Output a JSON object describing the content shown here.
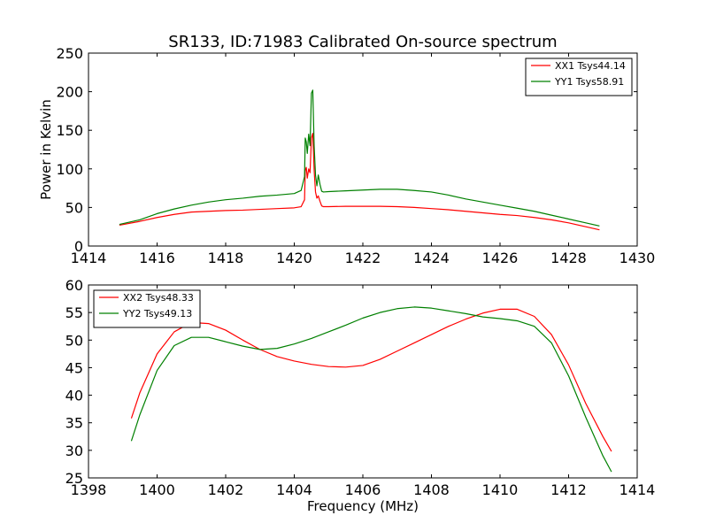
{
  "chart_data": [
    {
      "type": "line",
      "title": "SR133, ID:71983 Calibrated On-source spectrum",
      "xlabel": "",
      "ylabel": "Power in Kelvin",
      "xlim": [
        1414,
        1430
      ],
      "ylim": [
        0,
        250
      ],
      "xticks": [
        "1414",
        "1416",
        "1418",
        "1420",
        "1422",
        "1424",
        "1426",
        "1428",
        "1430"
      ],
      "yticks": [
        "0",
        "50",
        "100",
        "150",
        "200",
        "250"
      ],
      "grid": false,
      "legend_position": "top-right",
      "series": [
        {
          "name": "XX1 Tsys44.14",
          "color": "#ff0000",
          "x": [
            1414.9,
            1415.5,
            1416.0,
            1416.5,
            1417.0,
            1417.5,
            1418.0,
            1418.5,
            1419.0,
            1419.5,
            1420.0,
            1420.2,
            1420.3,
            1420.32,
            1420.35,
            1420.38,
            1420.42,
            1420.46,
            1420.5,
            1420.54,
            1420.58,
            1420.62,
            1420.66,
            1420.7,
            1420.75,
            1420.8,
            1420.85,
            1421.0,
            1421.5,
            1422.0,
            1422.5,
            1423.0,
            1423.5,
            1424.0,
            1424.5,
            1425.0,
            1425.5,
            1426.0,
            1426.5,
            1427.0,
            1427.5,
            1428.0,
            1428.5,
            1428.9
          ],
          "y": [
            27,
            32,
            37,
            41,
            44,
            45,
            46,
            46.5,
            47.5,
            48.5,
            49.5,
            51,
            60,
            98,
            102,
            88,
            100,
            95,
            140,
            146,
            98,
            70,
            62,
            65,
            58,
            52,
            51,
            51,
            51.5,
            51.5,
            51.5,
            51,
            50,
            48.5,
            47,
            45,
            43,
            41,
            39.5,
            37,
            34,
            30,
            25,
            21
          ]
        },
        {
          "name": "YY1 Tsys58.91",
          "color": "#008000",
          "x": [
            1414.9,
            1415.5,
            1416.0,
            1416.5,
            1417.0,
            1417.5,
            1418.0,
            1418.5,
            1419.0,
            1419.5,
            1420.0,
            1420.2,
            1420.3,
            1420.32,
            1420.35,
            1420.38,
            1420.42,
            1420.46,
            1420.5,
            1420.54,
            1420.58,
            1420.62,
            1420.66,
            1420.7,
            1420.75,
            1420.8,
            1420.85,
            1421.0,
            1421.5,
            1422.0,
            1422.5,
            1423.0,
            1423.5,
            1424.0,
            1424.5,
            1425.0,
            1425.5,
            1426.0,
            1426.5,
            1427.0,
            1427.5,
            1428.0,
            1428.5,
            1428.9
          ],
          "y": [
            28,
            34,
            42,
            48,
            53,
            57,
            60,
            62,
            64.5,
            66,
            68,
            72,
            90,
            140,
            135,
            120,
            145,
            130,
            198,
            202,
            130,
            92,
            78,
            92,
            80,
            71,
            70,
            70.5,
            71.5,
            72.5,
            73.5,
            73.5,
            72,
            70,
            66,
            61,
            57,
            53,
            49,
            45,
            40,
            35,
            30,
            26
          ]
        }
      ]
    },
    {
      "type": "line",
      "title": "",
      "xlabel": "Frequency (MHz)",
      "ylabel": "",
      "xlim": [
        1398,
        1414
      ],
      "ylim": [
        25,
        60
      ],
      "xticks": [
        "1398",
        "1400",
        "1402",
        "1404",
        "1406",
        "1408",
        "1410",
        "1412",
        "1414"
      ],
      "yticks": [
        "25",
        "30",
        "35",
        "40",
        "45",
        "50",
        "55",
        "60"
      ],
      "grid": false,
      "legend_position": "top-left",
      "series": [
        {
          "name": "XX2 Tsys48.33",
          "color": "#ff0000",
          "x": [
            1399.25,
            1399.5,
            1400.0,
            1400.5,
            1401.0,
            1401.5,
            1402.0,
            1402.5,
            1403.0,
            1403.5,
            1404.0,
            1404.5,
            1405.0,
            1405.5,
            1406.0,
            1406.5,
            1407.0,
            1407.5,
            1408.0,
            1408.5,
            1409.0,
            1409.5,
            1410.0,
            1410.5,
            1411.0,
            1411.5,
            1412.0,
            1412.5,
            1413.0,
            1413.25
          ],
          "y": [
            35.8,
            40.5,
            47.5,
            51.5,
            53.2,
            53.0,
            51.8,
            50.0,
            48.3,
            47.0,
            46.2,
            45.6,
            45.2,
            45.1,
            45.4,
            46.5,
            48.0,
            49.5,
            51.0,
            52.5,
            53.8,
            54.9,
            55.6,
            55.6,
            54.3,
            51.0,
            45.5,
            38.5,
            32.5,
            29.8
          ]
        },
        {
          "name": "YY2 Tsys49.13",
          "color": "#008000",
          "x": [
            1399.25,
            1399.5,
            1400.0,
            1400.5,
            1401.0,
            1401.5,
            1402.0,
            1402.5,
            1403.0,
            1403.5,
            1404.0,
            1404.5,
            1405.0,
            1405.5,
            1406.0,
            1406.5,
            1407.0,
            1407.5,
            1408.0,
            1408.5,
            1409.0,
            1409.5,
            1410.0,
            1410.5,
            1411.0,
            1411.5,
            1412.0,
            1412.5,
            1413.0,
            1413.25
          ],
          "y": [
            31.7,
            36.5,
            44.5,
            49.0,
            50.5,
            50.5,
            49.7,
            48.9,
            48.3,
            48.5,
            49.3,
            50.3,
            51.5,
            52.7,
            54.0,
            55.0,
            55.7,
            56.0,
            55.8,
            55.3,
            54.8,
            54.2,
            53.9,
            53.5,
            52.5,
            49.5,
            43.5,
            36.0,
            29.0,
            26.1
          ]
        }
      ]
    }
  ]
}
